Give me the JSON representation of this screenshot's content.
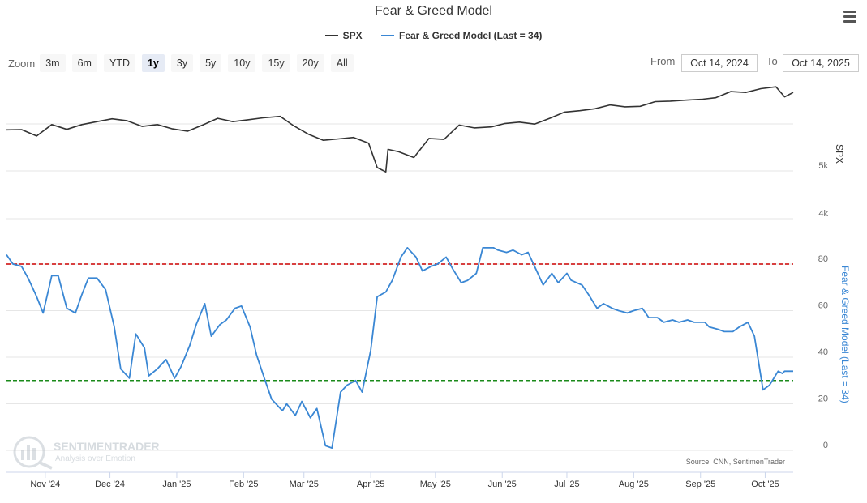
{
  "title": "Fear & Greed Model",
  "legend": [
    {
      "label": "SPX",
      "color": "#333333"
    },
    {
      "label": "Fear & Greed Model (Last = 34)",
      "color": "#3a87d4"
    }
  ],
  "toolbar": {
    "zoom_label": "Zoom",
    "zoom_buttons": [
      "3m",
      "6m",
      "YTD",
      "1y",
      "3y",
      "5y",
      "10y",
      "15y",
      "20y",
      "All"
    ],
    "active_zoom": "1y",
    "from_label": "From",
    "from_value": "Oct 14, 2024",
    "to_label": "To",
    "to_value": "Oct 14, 2025"
  },
  "menu_icon": "hamburger-menu-icon",
  "watermark": {
    "brand": "SENTIMENTRADER",
    "tagline": "Analysis over Emotion"
  },
  "source": "Source: CNN, SentimenTrader",
  "chart_data": [
    {
      "type": "line",
      "name": "SPX",
      "ylabel": "SPX",
      "yticks": [
        "4k",
        "5k"
      ],
      "color": "#333333",
      "x": [
        "2024-10-14",
        "2024-10-21",
        "2024-10-28",
        "2024-11-04",
        "2024-11-11",
        "2024-11-18",
        "2024-11-25",
        "2024-12-02",
        "2024-12-09",
        "2024-12-16",
        "2024-12-23",
        "2024-12-30",
        "2025-01-06",
        "2025-01-13",
        "2025-01-20",
        "2025-01-27",
        "2025-02-03",
        "2025-02-10",
        "2025-02-18",
        "2025-02-24",
        "2025-03-03",
        "2025-03-10",
        "2025-03-17",
        "2025-03-24",
        "2025-03-31",
        "2025-04-04",
        "2025-04-08",
        "2025-04-09",
        "2025-04-14",
        "2025-04-21",
        "2025-04-28",
        "2025-05-05",
        "2025-05-12",
        "2025-05-19",
        "2025-05-27",
        "2025-06-02",
        "2025-06-09",
        "2025-06-16",
        "2025-06-23",
        "2025-06-30",
        "2025-07-07",
        "2025-07-14",
        "2025-07-21",
        "2025-07-28",
        "2025-08-04",
        "2025-08-11",
        "2025-08-18",
        "2025-08-25",
        "2025-09-02",
        "2025-09-08",
        "2025-09-15",
        "2025-09-22",
        "2025-09-29",
        "2025-10-06",
        "2025-10-10",
        "2025-10-14"
      ],
      "values": [
        5860,
        5865,
        5730,
        5970,
        5870,
        5970,
        6030,
        6090,
        6050,
        5930,
        5970,
        5880,
        5830,
        5960,
        6100,
        6030,
        6070,
        6110,
        6140,
        5950,
        5770,
        5640,
        5670,
        5700,
        5580,
        5070,
        4980,
        5450,
        5400,
        5280,
        5680,
        5660,
        5960,
        5900,
        5920,
        5990,
        6020,
        5980,
        6100,
        6230,
        6260,
        6300,
        6380,
        6340,
        6350,
        6450,
        6460,
        6480,
        6500,
        6530,
        6660,
        6640,
        6720,
        6760,
        6550,
        6640
      ]
    },
    {
      "type": "line",
      "name": "Fear & Greed Model (Last = 34)",
      "ylabel": "Fear & Greed Model (Last = 34)",
      "ylim": [
        0,
        80
      ],
      "yticks": [
        0,
        20,
        40,
        60,
        80
      ],
      "thresholds": [
        {
          "value": 80,
          "color": "#cc0000"
        },
        {
          "value": 30,
          "color": "#1a8a1a"
        }
      ],
      "color": "#3a87d4",
      "x": [
        "2024-10-14",
        "2024-10-17",
        "2024-10-21",
        "2024-10-24",
        "2024-10-28",
        "2024-10-31",
        "2024-11-04",
        "2024-11-07",
        "2024-11-11",
        "2024-11-15",
        "2024-11-18",
        "2024-11-21",
        "2024-11-25",
        "2024-11-29",
        "2024-12-03",
        "2024-12-06",
        "2024-12-10",
        "2024-12-13",
        "2024-12-17",
        "2024-12-19",
        "2024-12-23",
        "2024-12-27",
        "2024-12-31",
        "2025-01-03",
        "2025-01-07",
        "2025-01-10",
        "2025-01-14",
        "2025-01-17",
        "2025-01-21",
        "2025-01-24",
        "2025-01-28",
        "2025-01-31",
        "2025-02-04",
        "2025-02-07",
        "2025-02-11",
        "2025-02-14",
        "2025-02-19",
        "2025-02-21",
        "2025-02-25",
        "2025-02-28",
        "2025-03-04",
        "2025-03-07",
        "2025-03-11",
        "2025-03-14",
        "2025-03-18",
        "2025-03-21",
        "2025-03-25",
        "2025-03-28",
        "2025-04-01",
        "2025-04-04",
        "2025-04-08",
        "2025-04-11",
        "2025-04-15",
        "2025-04-18",
        "2025-04-22",
        "2025-04-25",
        "2025-04-29",
        "2025-05-02",
        "2025-05-06",
        "2025-05-09",
        "2025-05-13",
        "2025-05-16",
        "2025-05-20",
        "2025-05-23",
        "2025-05-28",
        "2025-05-30",
        "2025-06-03",
        "2025-06-06",
        "2025-06-10",
        "2025-06-13",
        "2025-06-17",
        "2025-06-20",
        "2025-06-24",
        "2025-06-27",
        "2025-07-01",
        "2025-07-03",
        "2025-07-08",
        "2025-07-11",
        "2025-07-15",
        "2025-07-18",
        "2025-07-22",
        "2025-07-25",
        "2025-07-29",
        "2025-08-01",
        "2025-08-05",
        "2025-08-08",
        "2025-08-12",
        "2025-08-15",
        "2025-08-19",
        "2025-08-22",
        "2025-08-26",
        "2025-08-29",
        "2025-09-03",
        "2025-09-05",
        "2025-09-09",
        "2025-09-12",
        "2025-09-16",
        "2025-09-19",
        "2025-09-23",
        "2025-09-26",
        "2025-09-30",
        "2025-10-03",
        "2025-10-07",
        "2025-10-09",
        "2025-10-10",
        "2025-10-14"
      ],
      "values": [
        84,
        80,
        79,
        74,
        66,
        59,
        75,
        75,
        61,
        59,
        67,
        74,
        74,
        69,
        53,
        35,
        31,
        50,
        44,
        32,
        35,
        39,
        31,
        36,
        45,
        54,
        63,
        49,
        54,
        56,
        61,
        62,
        53,
        41,
        30,
        22,
        17,
        20,
        15,
        21,
        14,
        18,
        2,
        1,
        25,
        28,
        30,
        25,
        43,
        66,
        68,
        73,
        83,
        87,
        83,
        77,
        79,
        80,
        83,
        78,
        72,
        73,
        76,
        87,
        87,
        86,
        85,
        86,
        84,
        85,
        77,
        71,
        76,
        72,
        76,
        73,
        71,
        67,
        61,
        63,
        61,
        60,
        59,
        60,
        61,
        57,
        57,
        55,
        56,
        55,
        56,
        55,
        55,
        53,
        52,
        51,
        51,
        53,
        55,
        49,
        26,
        28,
        34,
        33,
        34,
        34
      ]
    }
  ],
  "x_axis_labels": [
    "Nov '24",
    "Dec '24",
    "Jan '25",
    "Feb '25",
    "Mar '25",
    "Apr '25",
    "May '25",
    "Jun '25",
    "Jul '25",
    "Aug '25",
    "Sep '25",
    "Oct '25"
  ]
}
